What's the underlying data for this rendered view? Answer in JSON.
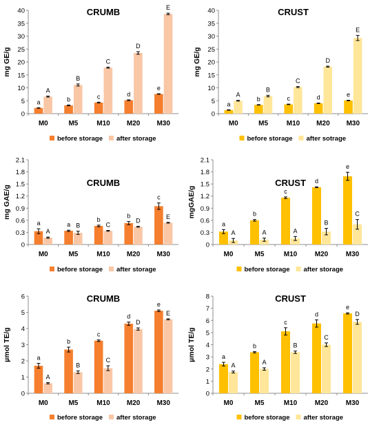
{
  "colors": {
    "crumb_before": "#F57F2E",
    "crumb_after": "#F9C7A6",
    "crust_before": "#FFC000",
    "crust_after": "#FFE699",
    "axis": "#8C8C8C",
    "text": "#000000"
  },
  "chart_data": [
    {
      "type": "bar",
      "title": "CRUMB",
      "ylabel": "mg GE/g",
      "xlabel": "",
      "categories": [
        "M0",
        "M5",
        "M10",
        "M20",
        "M30"
      ],
      "ylim": [
        0,
        40
      ],
      "yticks": [
        "0",
        "5",
        "10",
        "15",
        "20",
        "25",
        "30",
        "35",
        "40"
      ],
      "ytick_values": [
        0,
        5,
        10,
        15,
        20,
        25,
        30,
        35,
        40
      ],
      "grid": false,
      "legend": "bottom",
      "series": [
        {
          "name": "before storage",
          "color": "#F57F2E",
          "values": [
            2.2,
            3.2,
            4.3,
            5.2,
            7.6
          ],
          "errors": [
            0.1,
            0.15,
            0.15,
            0.15,
            0.1
          ],
          "letters": [
            "a",
            "b",
            "c",
            "d",
            "e"
          ]
        },
        {
          "name": "after storage",
          "color": "#F9C7A6",
          "values": [
            6.6,
            11.1,
            17.8,
            23.5,
            38.6
          ],
          "errors": [
            0.2,
            0.4,
            0.2,
            0.5,
            0.3
          ],
          "letters": [
            "A",
            "B",
            "C",
            "D",
            "E"
          ]
        }
      ]
    },
    {
      "type": "bar",
      "title": "CRUST",
      "ylabel": "mg GE/g",
      "xlabel": "",
      "categories": [
        "M0",
        "M5",
        "M10",
        "M20",
        "M30"
      ],
      "ylim": [
        0,
        40
      ],
      "yticks": [
        "0",
        "5",
        "10",
        "15",
        "20",
        "25",
        "30",
        "35",
        "40"
      ],
      "ytick_values": [
        0,
        5,
        10,
        15,
        20,
        25,
        30,
        35,
        40
      ],
      "grid": false,
      "legend": "bottom",
      "series": [
        {
          "name": "before storage",
          "color": "#FFC000",
          "values": [
            1.4,
            3.4,
            3.6,
            4.0,
            5.1
          ],
          "errors": [
            0.1,
            0.1,
            0.1,
            0.1,
            0.1
          ],
          "letters": [
            "a",
            "b",
            "c",
            "d",
            "e"
          ]
        },
        {
          "name": "after sotrage",
          "color": "#FFE699",
          "values": [
            5.0,
            6.8,
            10.3,
            18.2,
            29.3
          ],
          "errors": [
            0.15,
            0.3,
            0.2,
            0.2,
            1.0
          ],
          "letters": [
            "A",
            "B",
            "C",
            "D",
            "E"
          ]
        }
      ]
    },
    {
      "type": "bar",
      "title": "CRUMB",
      "ylabel": "mg GAE/g",
      "xlabel": "",
      "categories": [
        "M0",
        "M5",
        "M10",
        "M20",
        "M30"
      ],
      "ylim": [
        0,
        2.1
      ],
      "yticks": [
        "0",
        "0.3",
        "0.6",
        "0.9",
        "1.2",
        "1.5",
        "1.8",
        "2.1"
      ],
      "ytick_values": [
        0,
        0.3,
        0.6,
        0.9,
        1.2,
        1.5,
        1.8,
        2.1
      ],
      "grid": false,
      "legend": "bottom",
      "series": [
        {
          "name": "before storage",
          "color": "#F57F2E",
          "values": [
            0.33,
            0.34,
            0.46,
            0.53,
            0.95
          ],
          "errors": [
            0.06,
            0.015,
            0.02,
            0.04,
            0.08
          ],
          "letters": [
            "a",
            "a",
            "b",
            "b",
            "c"
          ]
        },
        {
          "name": "after storage",
          "color": "#F9C7A6",
          "values": [
            0.17,
            0.29,
            0.34,
            0.44,
            0.54
          ],
          "errors": [
            0.015,
            0.04,
            0.01,
            0.01,
            0.01
          ],
          "letters": [
            "A",
            "B",
            "C",
            "D",
            "E"
          ]
        }
      ]
    },
    {
      "type": "bar",
      "title": "CRUST",
      "ylabel": "mgGAE/g",
      "xlabel": "",
      "categories": [
        "M0",
        "M5",
        "M10",
        "M20",
        "M30"
      ],
      "ylim": [
        0,
        2.1
      ],
      "yticks": [
        "0",
        "0.3",
        "0.6",
        "0.9",
        "1.2",
        "1.5",
        "1.8",
        "2.1"
      ],
      "ytick_values": [
        0,
        0.3,
        0.6,
        0.9,
        1.2,
        1.5,
        1.8,
        2.1
      ],
      "grid": false,
      "legend": "bottom",
      "series": [
        {
          "name": "before storage",
          "color": "#FFC000",
          "values": [
            0.32,
            0.6,
            1.16,
            1.42,
            1.69
          ],
          "errors": [
            0.05,
            0.02,
            0.02,
            0.01,
            0.1
          ],
          "letters": [
            "a",
            "b",
            "c",
            "d",
            "e"
          ]
        },
        {
          "name": "after storage",
          "color": "#FFE699",
          "values": [
            0.1,
            0.12,
            0.15,
            0.32,
            0.5
          ],
          "errors": [
            0.05,
            0.04,
            0.05,
            0.08,
            0.12
          ],
          "letters": [
            "A",
            "A",
            "A",
            "B",
            "C"
          ]
        }
      ]
    },
    {
      "type": "bar",
      "title": "CRUMB",
      "ylabel": "µmol TE/g",
      "xlabel": "",
      "categories": [
        "M0",
        "M5",
        "M10",
        "M20",
        "M30"
      ],
      "ylim": [
        0,
        6
      ],
      "yticks": [
        "0",
        "1",
        "2",
        "3",
        "4",
        "5",
        "6"
      ],
      "ytick_values": [
        0,
        1,
        2,
        3,
        4,
        5,
        6
      ],
      "grid": false,
      "legend": "bottom",
      "series": [
        {
          "name": "before storage",
          "color": "#F57F2E",
          "values": [
            1.7,
            2.7,
            3.25,
            4.3,
            5.1
          ],
          "errors": [
            0.15,
            0.15,
            0.05,
            0.1,
            0.05
          ],
          "letters": [
            "a",
            "b",
            "c",
            "d",
            "e"
          ]
        },
        {
          "name": "after storage",
          "color": "#F9C7A6",
          "values": [
            0.62,
            1.3,
            1.55,
            3.97,
            4.57
          ],
          "errors": [
            0.04,
            0.08,
            0.15,
            0.07,
            0.03
          ],
          "letters": [
            "A",
            "B",
            "C",
            "D",
            "E"
          ]
        }
      ]
    },
    {
      "type": "bar",
      "title": "CRUST",
      "ylabel": "µmol TE/g",
      "xlabel": "",
      "categories": [
        "M0",
        "M5",
        "M10",
        "M20",
        "M30"
      ],
      "ylim": [
        0,
        8
      ],
      "yticks": [
        "0",
        "1",
        "2",
        "3",
        "4",
        "5",
        "6",
        "7",
        "8"
      ],
      "ytick_values": [
        0,
        1,
        2,
        3,
        4,
        5,
        6,
        7,
        8
      ],
      "grid": false,
      "legend": "bottom",
      "series": [
        {
          "name": "before storage",
          "color": "#FFC000",
          "values": [
            2.4,
            3.38,
            5.1,
            5.75,
            6.58
          ],
          "errors": [
            0.15,
            0.05,
            0.3,
            0.3,
            0.05
          ],
          "letters": [
            "a",
            "b",
            "c",
            "d",
            "e"
          ]
        },
        {
          "name": "after storage",
          "color": "#FFE699",
          "values": [
            1.75,
            2.0,
            3.38,
            4.0,
            5.88
          ],
          "errors": [
            0.08,
            0.1,
            0.1,
            0.15,
            0.2
          ],
          "letters": [
            "A",
            "A",
            "B",
            "C",
            "D"
          ]
        }
      ]
    }
  ]
}
